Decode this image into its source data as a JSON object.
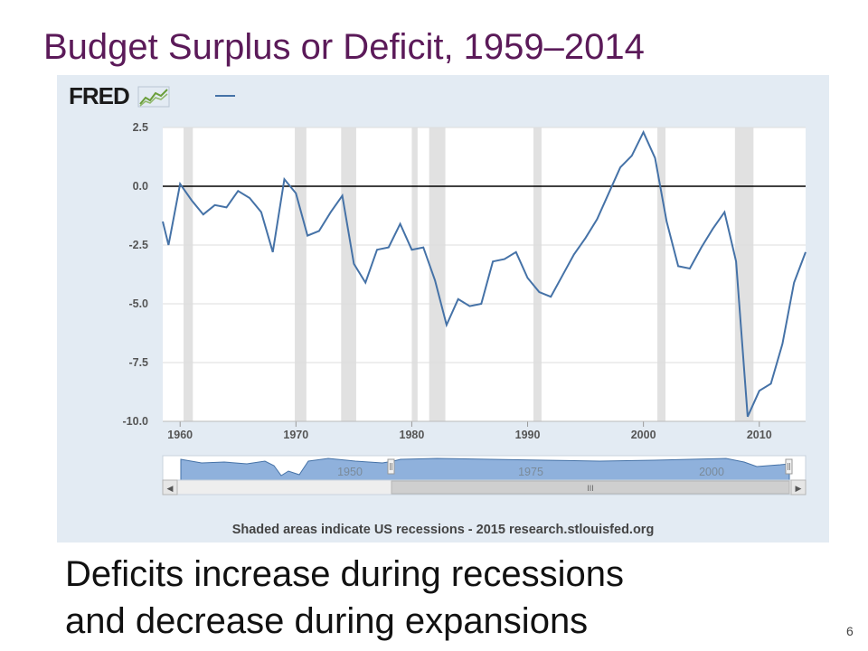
{
  "slide": {
    "title": "Budget Surplus or Deficit, 1959–2014",
    "caption_line1": "Deficits increase during recessions",
    "caption_line2": "and decrease during expansions",
    "number": "6"
  },
  "fred": {
    "logo_text": "FRED",
    "footer": "Shaded areas indicate US recessions - 2015 research.stlouisfed.org"
  },
  "chart_data": {
    "type": "line",
    "title": "",
    "xlabel": "",
    "ylabel": "",
    "xlim": [
      1958.5,
      2014
    ],
    "ylim": [
      -10,
      2.5
    ],
    "yticks": [
      "2.5",
      "0.0",
      "-2.5",
      "-5.0",
      "-7.5",
      "-10.0"
    ],
    "ytick_values": [
      2.5,
      0,
      -2.5,
      -5,
      -7.5,
      -10
    ],
    "xticks": [
      "1960",
      "1970",
      "1980",
      "1990",
      "2000",
      "2010"
    ],
    "xtick_values": [
      1960,
      1970,
      1980,
      1990,
      2000,
      2010
    ],
    "reference_line": 0,
    "recessions": [
      [
        1960.3,
        1961.1
      ],
      [
        1969.9,
        1970.9
      ],
      [
        1973.9,
        1975.2
      ],
      [
        1980.0,
        1980.5
      ],
      [
        1981.5,
        1982.9
      ],
      [
        1990.5,
        1991.2
      ],
      [
        2001.2,
        2001.9
      ],
      [
        2007.9,
        2009.5
      ]
    ],
    "series": [
      {
        "color": "#4572a7",
        "x": [
          1958.5,
          1959,
          1960,
          1961,
          1962,
          1963,
          1964,
          1965,
          1966,
          1967,
          1968,
          1969,
          1970,
          1971,
          1972,
          1973,
          1974,
          1975,
          1976,
          1977,
          1978,
          1979,
          1980,
          1981,
          1982,
          1983,
          1984,
          1985,
          1986,
          1987,
          1988,
          1989,
          1990,
          1991,
          1992,
          1993,
          1994,
          1995,
          1996,
          1997,
          1998,
          1999,
          2000,
          2001,
          2002,
          2003,
          2004,
          2005,
          2006,
          2007,
          2008,
          2009,
          2010,
          2011,
          2012,
          2013,
          2014
        ],
        "y": [
          -1.5,
          -2.5,
          0.1,
          -0.6,
          -1.2,
          -0.8,
          -0.9,
          -0.2,
          -0.5,
          -1.1,
          -2.8,
          0.3,
          -0.3,
          -2.1,
          -1.9,
          -1.1,
          -0.4,
          -3.3,
          -4.1,
          -2.7,
          -2.6,
          -1.6,
          -2.7,
          -2.6,
          -4.0,
          -5.9,
          -4.8,
          -5.1,
          -5.0,
          -3.2,
          -3.1,
          -2.8,
          -3.9,
          -4.5,
          -4.7,
          -3.8,
          -2.9,
          -2.2,
          -1.4,
          -0.3,
          0.8,
          1.3,
          2.3,
          1.2,
          -1.5,
          -3.4,
          -3.5,
          -2.6,
          -1.8,
          -1.1,
          -3.2,
          -9.8,
          -8.7,
          -8.4,
          -6.7,
          -4.1,
          -2.8
        ]
      }
    ]
  },
  "navigator": {
    "labels": [
      "1950",
      "1975",
      "2000"
    ],
    "left_arrow": "◀",
    "right_arrow": "▶",
    "grip": "III"
  }
}
